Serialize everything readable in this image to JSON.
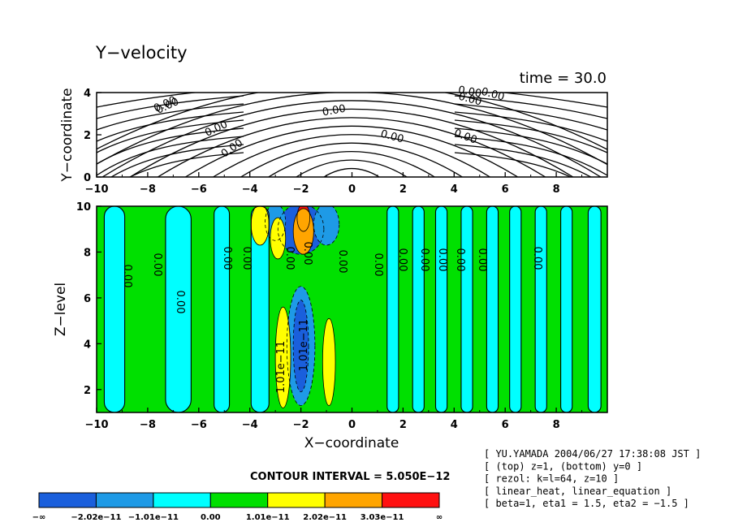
{
  "chart_data": [
    {
      "type": "contour",
      "title": "Y−velocity",
      "time_label": "time = 30.0",
      "xlabel": "",
      "ylabel": "Y−coordinate",
      "xlim": [
        -10,
        10
      ],
      "ylim": [
        0,
        4
      ],
      "x_ticks": [
        "−10",
        "−8",
        "−6",
        "−4",
        "−2",
        "0",
        "2",
        "4",
        "6",
        "8"
      ],
      "y_ticks": [
        "0",
        "2",
        "4"
      ],
      "contour_labels": [
        "0.00",
        "0.00",
        "0.00",
        "0.00",
        "0.00",
        "0.00",
        "0.00",
        "0.00",
        "0.00",
        "0.00"
      ]
    },
    {
      "type": "heatmap",
      "xlabel": "X−coordinate",
      "ylabel": "Z−level",
      "xlim": [
        -10,
        10
      ],
      "ylim": [
        1,
        10
      ],
      "x_ticks": [
        "−10",
        "−8",
        "−6",
        "−4",
        "−2",
        "0",
        "2",
        "4",
        "6",
        "8"
      ],
      "y_ticks": [
        "2",
        "4",
        "6",
        "8",
        "10"
      ],
      "contour_labels": [
        "0.00",
        "0.00",
        "0.00",
        "0.00",
        "0.00",
        "0.00",
        "0.00",
        "0.00",
        "0.00",
        "0.00",
        "0.00",
        "0.00",
        "0.00",
        "0.00",
        "0.00",
        "1.01e−11",
        "1.01e−11"
      ],
      "contour_interval": "CONTOUR INTERVAL = 5.050E−12",
      "colorbar": {
        "colors": [
          "#1a5fdc",
          "#1e9ae6",
          "#00ffff",
          "#00e000",
          "#ffff00",
          "#ffa500",
          "#ff1010"
        ],
        "labels": [
          "−∞",
          "−2.02e−11",
          "−1.01e−11",
          "0.00",
          "1.01e−11",
          "2.02e−11",
          "3.03e−11",
          "∞"
        ]
      }
    }
  ],
  "info_lines": [
    "[ YU.YAMADA 2004/06/27 17:38:08 JST ]",
    "[ (top) z=1, (bottom) y=0 ]",
    "[ rezol: k=l=64, z=10 ]",
    "[ linear_heat, linear_equation ]",
    "[ beta=1, eta1 = 1.5, eta2 = −1.5 ]"
  ]
}
